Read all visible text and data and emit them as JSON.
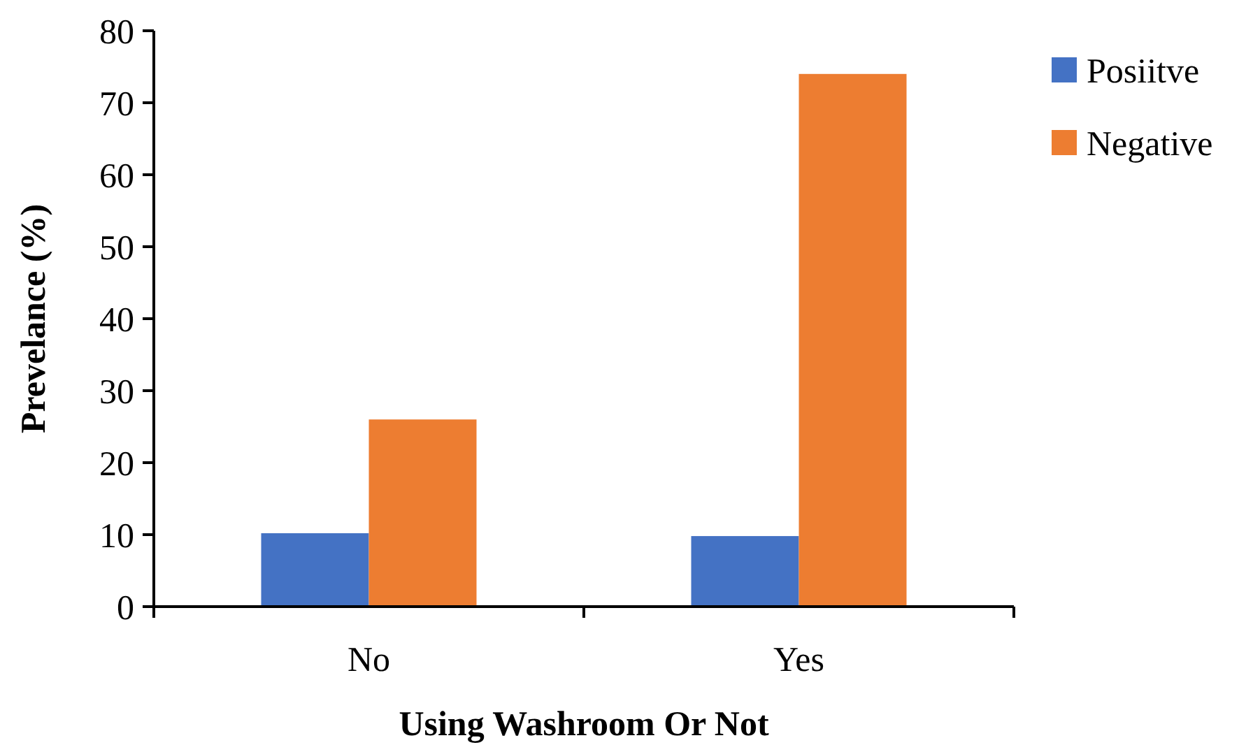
{
  "chart_data": {
    "type": "bar",
    "xlabel": "Using Washroom Or Not",
    "ylabel": "Prevelance (%)",
    "categories": [
      "No",
      "Yes"
    ],
    "series": [
      {
        "name": "Posiitve",
        "color": "#4472c4",
        "values": [
          10.2,
          9.8
        ]
      },
      {
        "name": "Negative",
        "color": "#ed7d31",
        "values": [
          26,
          74
        ]
      }
    ],
    "ylim": [
      0,
      80
    ],
    "yticks": [
      0,
      10,
      20,
      30,
      40,
      50,
      60,
      70,
      80
    ],
    "grid": false,
    "legend": "top right"
  }
}
